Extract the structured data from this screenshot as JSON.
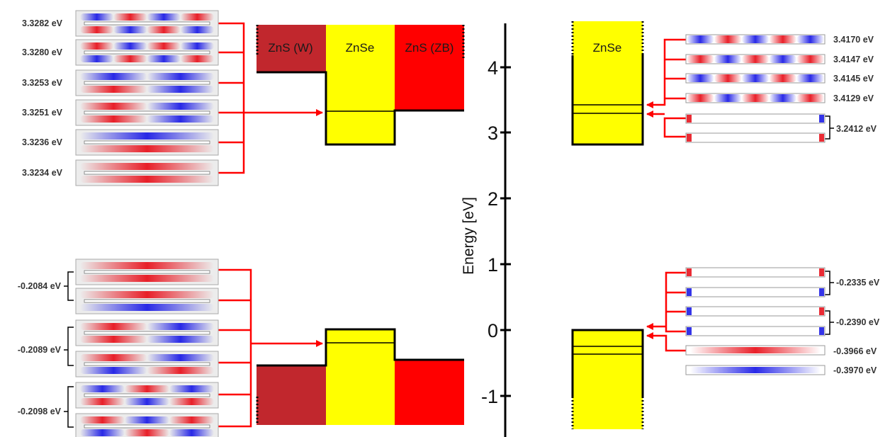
{
  "colors": {
    "red": "#ff0000",
    "dark_red": "#c1272d",
    "yellow": "#ffff00",
    "arrow": "#ff0000",
    "wave_red": "#e8141e",
    "wave_blue": "#1e1ee6",
    "box_bg": "#ececec"
  },
  "axis": {
    "label": "Energy [eV]",
    "ticks": [
      "4",
      "3",
      "2",
      "1",
      "0",
      "-1"
    ]
  },
  "materials": {
    "zns_w": "ZnS (W)",
    "znse": "ZnSe",
    "zns_zb": "ZnS (ZB)",
    "znse_right": "ZnSe"
  },
  "left_conduction": {
    "energies": [
      "3.3282 eV",
      "3.3280 eV",
      "3.3253 eV",
      "3.3251 eV",
      "3.3236 eV",
      "3.3234 eV"
    ],
    "patterns": [
      {
        "top": "brbr",
        "bot": "rbrb"
      },
      {
        "top": "rbrb",
        "bot": "brbr"
      },
      {
        "top": "bb",
        "bot": "rb"
      },
      {
        "top": "rb",
        "bot": "rb"
      },
      {
        "top": "b",
        "bot": "r"
      },
      {
        "top": "r",
        "bot": "r"
      }
    ]
  },
  "left_valence": {
    "energies": [
      "-0.2084 eV",
      "-0.2089 eV",
      "-0.2098 eV"
    ],
    "patterns": [
      {
        "top": "r",
        "bot": "r"
      },
      {
        "top": "r",
        "bot": "b"
      },
      {
        "top": "rb",
        "bot": "rb"
      },
      {
        "top": "rb",
        "bot": "br"
      },
      {
        "top": "brb",
        "bot": "rbr"
      },
      {
        "top": "rbr",
        "bot": "brb"
      }
    ]
  },
  "right_conduction": {
    "energies": [
      "3.4170 eV",
      "3.4147 eV",
      "3.4145 eV",
      "3.4129 eV",
      "3.2412 eV"
    ],
    "patterns": [
      "brbrb",
      "rbrbr",
      "brbrb",
      "rbrbr",
      "end-rb",
      "end-rr"
    ]
  },
  "right_valence": {
    "energies": [
      "-0.2335 eV",
      "-0.2390 eV",
      "-0.3966 eV",
      "-0.3970 eV"
    ],
    "patterns": [
      "end-rr",
      "end-bb",
      "end-br",
      "end-bb",
      "faint-r",
      "faint-b"
    ]
  }
}
